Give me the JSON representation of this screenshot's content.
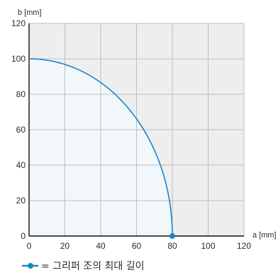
{
  "chart_data": {
    "type": "line",
    "xlabel": "a [mm]",
    "ylabel": "b [mm]",
    "xlim": [
      0,
      120
    ],
    "ylim": [
      0,
      120
    ],
    "x_ticks": [
      0,
      20,
      40,
      60,
      80,
      100,
      120
    ],
    "y_ticks": [
      0,
      20,
      40,
      60,
      80,
      100,
      120
    ],
    "grid": true,
    "series": [
      {
        "name": "= 그리퍼 조의 최대 길이",
        "shape": "quarter-ellipse",
        "a_max": 80,
        "b_max": 100,
        "points": [
          {
            "x": 0,
            "y": 100
          },
          {
            "x": 80,
            "y": 0
          }
        ],
        "markers": [
          {
            "x": 80,
            "y": 0
          }
        ]
      }
    ],
    "colors": {
      "line": "#1a86c8",
      "fill": "#f2f7fc",
      "plot_background": "#eeeeee",
      "grid": "#bdbdbd",
      "axis": "#111111"
    },
    "legend": {
      "placement": "bottom-left",
      "label": "= 그리퍼 조의 최대 길이"
    }
  }
}
